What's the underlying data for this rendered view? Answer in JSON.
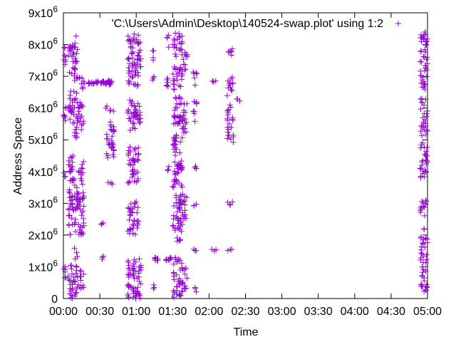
{
  "chart_data": {
    "type": "scatter",
    "title": "",
    "xlabel": "Time",
    "ylabel": "Address Space",
    "xlim": [
      0,
      300
    ],
    "ylim": [
      0,
      9000000
    ],
    "grid": false,
    "legend_position": "top-right",
    "x_ticks": [
      {
        "value": 0,
        "label": "00:00"
      },
      {
        "value": 30,
        "label": "00:30"
      },
      {
        "value": 60,
        "label": "01:00"
      },
      {
        "value": 90,
        "label": "01:30"
      },
      {
        "value": 120,
        "label": "02:00"
      },
      {
        "value": 150,
        "label": "02:30"
      },
      {
        "value": 180,
        "label": "03:00"
      },
      {
        "value": 210,
        "label": "03:30"
      },
      {
        "value": 240,
        "label": "04:00"
      },
      {
        "value": 270,
        "label": "04:30"
      },
      {
        "value": 300,
        "label": "05:00"
      }
    ],
    "y_ticks": [
      {
        "value": 0,
        "mantissa": "0",
        "exp": ""
      },
      {
        "value": 1000000,
        "mantissa": "1x10",
        "exp": "6"
      },
      {
        "value": 2000000,
        "mantissa": "2x10",
        "exp": "6"
      },
      {
        "value": 3000000,
        "mantissa": "3x10",
        "exp": "6"
      },
      {
        "value": 4000000,
        "mantissa": "4x10",
        "exp": "6"
      },
      {
        "value": 5000000,
        "mantissa": "5x10",
        "exp": "6"
      },
      {
        "value": 6000000,
        "mantissa": "6x10",
        "exp": "6"
      },
      {
        "value": 7000000,
        "mantissa": "7x10",
        "exp": "6"
      },
      {
        "value": 8000000,
        "mantissa": "8x10",
        "exp": "6"
      },
      {
        "value": 9000000,
        "mantissa": "9x10",
        "exp": "6"
      }
    ],
    "series": [
      {
        "name": "'C:\\Users\\Admin\\Desktop\\140524-swap.plot' using 1:2",
        "color": "#9400D3",
        "marker": "plus-icon",
        "clusters": [
          {
            "x": [
              0,
              2
            ],
            "y_ranges": [
              [
                500000,
                1000000
              ],
              [
                3800000,
                4000000
              ],
              [
                5500000,
                6100000
              ],
              [
                7300000,
                8000000
              ]
            ]
          },
          {
            "x": [
              4,
              9
            ],
            "y_ranges": [
              [
                0,
                1100000
              ],
              [
                2000000,
                4500000
              ],
              [
                5500000,
                6600000
              ],
              [
                7000000,
                8000000
              ]
            ]
          },
          {
            "x": [
              9,
              12
            ],
            "y_ranges": [
              [
                0,
                1600000
              ],
              [
                2100000,
                3600000
              ],
              [
                5000000,
                6500000
              ],
              [
                6800000,
                8400000
              ]
            ]
          },
          {
            "x": [
              12,
              17
            ],
            "y_ranges": [
              [
                300000,
                900000
              ],
              [
                2000000,
                4400000
              ],
              [
                5300000,
                6200000
              ],
              [
                6600000,
                7000000
              ]
            ]
          },
          {
            "x": [
              17,
              40
            ],
            "y_ranges": [
              [
                6750000,
                6850000
              ]
            ]
          },
          {
            "x": [
              31,
              33
            ],
            "y_ranges": [
              [
                1200000,
                1400000
              ],
              [
                2200000,
                2400000
              ]
            ]
          },
          {
            "x": [
              35,
              42
            ],
            "y_ranges": [
              [
                3600000,
                3700000
              ],
              [
                4400000,
                5600000
              ],
              [
                5900000,
                6100000
              ],
              [
                6700000,
                6900000
              ]
            ]
          },
          {
            "x": [
              53,
              62
            ],
            "y_ranges": [
              [
                0,
                1300000
              ],
              [
                2000000,
                3100000
              ],
              [
                3600000,
                4800000
              ],
              [
                5300000,
                6300000
              ],
              [
                6600000,
                8400000
              ]
            ]
          },
          {
            "x": [
              62,
              64
            ],
            "y_ranges": [
              [
                0,
                1300000
              ],
              [
                5500000,
                6100000
              ],
              [
                7300000,
                8100000
              ]
            ]
          },
          {
            "x": [
              73,
              75
            ],
            "y_ranges": [
              [
                300000,
                500000
              ],
              [
                6800000,
                7000000
              ],
              [
                7500000,
                7900000
              ]
            ]
          },
          {
            "x": [
              75,
              90
            ],
            "y_ranges": [
              [
                1200000,
                1300000
              ]
            ]
          },
          {
            "x": [
              85,
              87
            ],
            "y_ranges": [
              [
                3900000,
                4200000
              ],
              [
                6600000,
                7200000
              ],
              [
                7900000,
                8300000
              ]
            ]
          },
          {
            "x": [
              90,
              98
            ],
            "y_ranges": [
              [
                0,
                1300000
              ],
              [
                1800000,
                3400000
              ],
              [
                3500000,
                5300000
              ],
              [
                5500000,
                7300000
              ],
              [
                7600000,
                8400000
              ]
            ]
          },
          {
            "x": [
              98,
              102
            ],
            "y_ranges": [
              [
                300000,
                1000000
              ],
              [
                2500000,
                3300000
              ],
              [
                5000000,
                6200000
              ],
              [
                7000000,
                7800000
              ]
            ]
          },
          {
            "x": [
              107,
              110
            ],
            "y_ranges": [
              [
                200000,
                400000
              ],
              [
                1400000,
                1600000
              ],
              [
                2900000,
                3000000
              ],
              [
                4000000,
                4200000
              ],
              [
                5500000,
                6300000
              ],
              [
                6700000,
                7200000
              ]
            ]
          },
          {
            "x": [
              120,
              128
            ],
            "y_ranges": [
              [
                1500000,
                1600000
              ],
              [
                6800000,
                6900000
              ]
            ]
          },
          {
            "x": [
              135,
              140
            ],
            "y_ranges": [
              [
                1500000,
                1600000
              ],
              [
                2900000,
                3100000
              ],
              [
                4800000,
                6100000
              ],
              [
                6300000,
                7000000
              ],
              [
                7600000,
                7900000
              ]
            ]
          },
          {
            "x": [
              143,
              146
            ],
            "y_ranges": [
              [
                6100000,
                6400000
              ]
            ]
          },
          {
            "x": [
              294,
              300
            ],
            "y_ranges": [
              [
                200000,
                2200000
              ],
              [
                2500000,
                3100000
              ],
              [
                3800000,
                8400000
              ]
            ]
          }
        ]
      }
    ]
  }
}
